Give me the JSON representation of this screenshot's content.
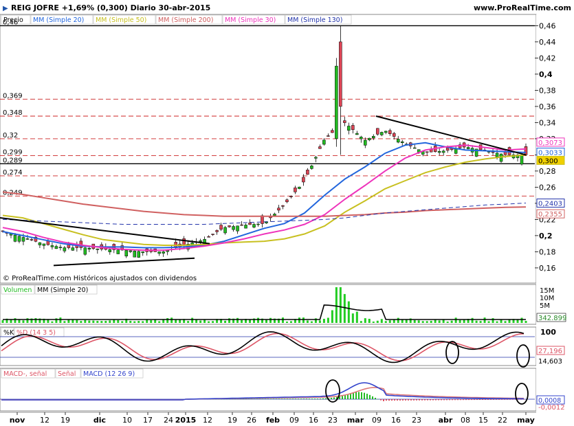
{
  "header": {
    "title": "REIG JOFRE  +1,69% (0,300)  Diario  30-abr-2015",
    "site": "www.ProRealTime.com"
  },
  "copyright": "© ProRealTime.com  Históricos ajustados con dividendos",
  "colors": {
    "up": "#22bb22",
    "down": "#dd4455",
    "ma20": "#2266dd",
    "ma50": "#c8c020",
    "ma200": "#d06060",
    "ma30": "#ee33bb",
    "ma130": "#2233aa",
    "trendline": "#000000",
    "dashed_level": "#cc2222",
    "volume": "#22cc22",
    "stoch_k": "#000000",
    "stoch_d": "#dd5566",
    "macd": "#3344cc",
    "macd_signal": "#dd7777"
  },
  "chart_data": [
    {
      "type": "candlestick",
      "panel": "price",
      "legend": [
        "Precio",
        "MM (Simple 20)",
        "MM (Simple 50)",
        "MM (Simple 200)",
        "MM (Simple 30)",
        "MM (Simple 130)"
      ],
      "y_ticks": [
        "0,46",
        "0,44",
        "0,42",
        "0,4",
        "0,38",
        "0,36",
        "0,34",
        "0,32",
        "0,3",
        "0,28",
        "0,26",
        "0,24",
        "0,22",
        "0,2",
        "0,18",
        "0,16"
      ],
      "ylim": [
        0.148,
        0.468
      ],
      "x_ticks": [
        "nov",
        "12",
        "19",
        "dic",
        "10",
        "17",
        "24",
        "2015",
        "12",
        "19",
        "26",
        "feb",
        "09",
        "16",
        "23",
        "mar",
        "09",
        "16",
        "23",
        "abr",
        "08",
        "15",
        "22",
        "may"
      ],
      "level_lines": [
        {
          "label": "0,46",
          "value": 0.46,
          "style": "solid"
        },
        {
          "label": "0,369",
          "value": 0.369,
          "style": "dashed"
        },
        {
          "label": "0,348",
          "value": 0.348,
          "style": "dashed"
        },
        {
          "label": "0,32",
          "value": 0.32,
          "style": "dashed"
        },
        {
          "label": "0,299",
          "value": 0.299,
          "style": "dashed"
        },
        {
          "label": "0,289",
          "value": 0.289,
          "style": "solid"
        },
        {
          "label": "0,274",
          "value": 0.274,
          "style": "dashed"
        },
        {
          "label": "0,249",
          "value": 0.249,
          "style": "dashed"
        }
      ],
      "value_labels": [
        "0,3073",
        "0,3033",
        "0,300",
        "0,2403",
        "0,2355"
      ],
      "series": [
        {
          "name": "MM (Simple 20)",
          "values": [
            0.205,
            0.2,
            0.195,
            0.19,
            0.187,
            0.186,
            0.186,
            0.185,
            0.185,
            0.186,
            0.188,
            0.193,
            0.201,
            0.209,
            0.215,
            0.228,
            0.25,
            0.27,
            0.285,
            0.302,
            0.312,
            0.315,
            0.31,
            0.306,
            0.305,
            0.304,
            0.303
          ]
        },
        {
          "name": "MM (Simple 50)",
          "values": [
            0.225,
            0.222,
            0.215,
            0.208,
            0.201,
            0.195,
            0.192,
            0.189,
            0.188,
            0.188,
            0.189,
            0.191,
            0.192,
            0.193,
            0.196,
            0.202,
            0.212,
            0.229,
            0.243,
            0.258,
            0.268,
            0.278,
            0.285,
            0.291,
            0.295,
            0.298,
            0.3
          ]
        },
        {
          "name": "MM (Simple 200)",
          "values": [
            0.254,
            0.251,
            0.247,
            0.243,
            0.239,
            0.236,
            0.233,
            0.23,
            0.228,
            0.226,
            0.225,
            0.224,
            0.224,
            0.224,
            0.224,
            0.224,
            0.224,
            0.225,
            0.226,
            0.228,
            0.229,
            0.231,
            0.232,
            0.233,
            0.234,
            0.235,
            0.2355
          ]
        },
        {
          "name": "MM (Simple 30)",
          "values": [
            0.21,
            0.205,
            0.198,
            0.192,
            0.188,
            0.185,
            0.183,
            0.182,
            0.182,
            0.184,
            0.187,
            0.191,
            0.196,
            0.202,
            0.207,
            0.214,
            0.226,
            0.245,
            0.262,
            0.28,
            0.296,
            0.306,
            0.31,
            0.312,
            0.309,
            0.306,
            0.3073
          ]
        },
        {
          "name": "MM (Simple 130)",
          "values": [
            0.22,
            0.219,
            0.218,
            0.217,
            0.216,
            0.215,
            0.214,
            0.214,
            0.214,
            0.214,
            0.214,
            0.215,
            0.216,
            0.217,
            0.218,
            0.219,
            0.22,
            0.222,
            0.225,
            0.228,
            0.23,
            0.232,
            0.234,
            0.236,
            0.238,
            0.239,
            0.2403
          ]
        }
      ],
      "closes": [
        0.205,
        0.198,
        0.19,
        0.185,
        0.185,
        0.183,
        0.182,
        0.18,
        0.18,
        0.188,
        0.195,
        0.21,
        0.213,
        0.215,
        0.238,
        0.268,
        0.32,
        0.34,
        0.318,
        0.33,
        0.314,
        0.303,
        0.305,
        0.31,
        0.305,
        0.3,
        0.3
      ]
    },
    {
      "type": "bar",
      "panel": "volume",
      "legend": [
        "Volumen",
        "MM (Simple 20)"
      ],
      "y_ticks": [
        "15M",
        "10M",
        "5M"
      ],
      "value_labels": [
        "342.899"
      ]
    },
    {
      "type": "line",
      "panel": "stochastic",
      "legend": [
        "%K",
        "%D (14 3 5)"
      ],
      "y_ticks": [
        "100",
        "0"
      ],
      "value_labels": [
        "27,196",
        "14,603"
      ]
    },
    {
      "type": "line",
      "panel": "macd",
      "legend": [
        "MACD-, señal",
        "Señal",
        "MACD (12 26 9)"
      ],
      "value_labels": [
        "0,0008",
        "-0,0012"
      ]
    }
  ]
}
